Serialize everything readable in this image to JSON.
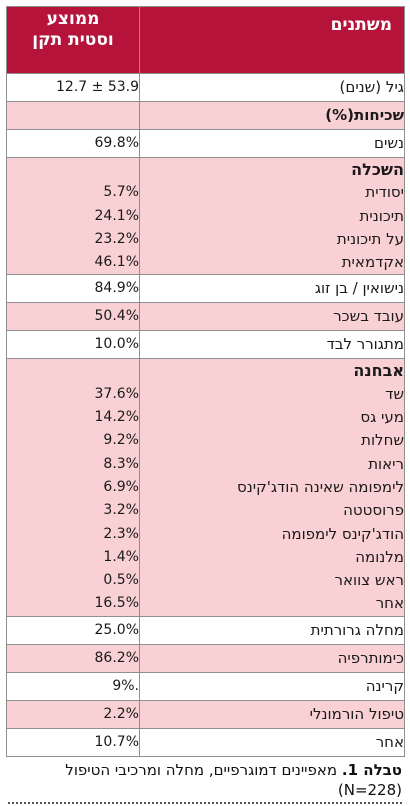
{
  "header": {
    "col_label": "משתנים",
    "col_value_line1": "ממוצע",
    "col_value_line2": "וסטית תקן"
  },
  "rows": {
    "age": {
      "label": "גיל (שנים)",
      "value": "12.7 ± 53.9"
    },
    "freq_header": {
      "label": "שכיחות(%)"
    },
    "women": {
      "label": "נשים",
      "value": "69.8%"
    },
    "education": {
      "title": "השכלה",
      "items": [
        {
          "label": "יסודית",
          "value": "5.7%"
        },
        {
          "label": "תיכונית",
          "value": "24.1%"
        },
        {
          "label": "על תיכונית",
          "value": "23.2%"
        },
        {
          "label": "אקדמאית",
          "value": "46.1%"
        }
      ]
    },
    "married": {
      "label": "נישואין / בן זוג",
      "value": "84.9%"
    },
    "employed": {
      "label": "עובד בשכר",
      "value": "50.4%"
    },
    "lives_alone": {
      "label": "מתגורר לבד",
      "value": "10.0%"
    },
    "diagnosis": {
      "title": "אבחנה",
      "items": [
        {
          "label": "שד",
          "value": "37.6%"
        },
        {
          "label": "מעי גס",
          "value": "14.2%"
        },
        {
          "label": "שחלות",
          "value": "9.2%"
        },
        {
          "label": "ריאות",
          "value": "8.3%"
        },
        {
          "label": "לימפומה שאינה הודג'קינס",
          "value": "6.9%"
        },
        {
          "label": "פרוסטטה",
          "value": "3.2%"
        },
        {
          "label": "הודג'קינס לימפומה",
          "value": "2.3%"
        },
        {
          "label": "מלנומה",
          "value": "1.4%"
        },
        {
          "label": "ראש צוואר",
          "value": "0.5%"
        },
        {
          "label": "אחר",
          "value": "16.5%"
        }
      ]
    },
    "metastatic": {
      "label": "מחלה גרורתית",
      "value": "25.0%"
    },
    "chemo": {
      "label": "כימותרפיה",
      "value": "86.2%"
    },
    "radiation": {
      "label": "קרינה",
      "value": "9%."
    },
    "hormonal": {
      "label": "טיפול הורמונלי",
      "value": "2.2%"
    },
    "other": {
      "label": "אחר",
      "value": "10.7%"
    }
  },
  "caption": {
    "prefix": "טבלה 1.",
    "text": "מאפיינים דמוגרפיים, מחלה ומרכיבי הטיפול",
    "n": "(N=228)"
  },
  "colors": {
    "header_bg": "#b5133a",
    "pink_row": "#f9d0d3",
    "header_text": "#ffffff"
  }
}
